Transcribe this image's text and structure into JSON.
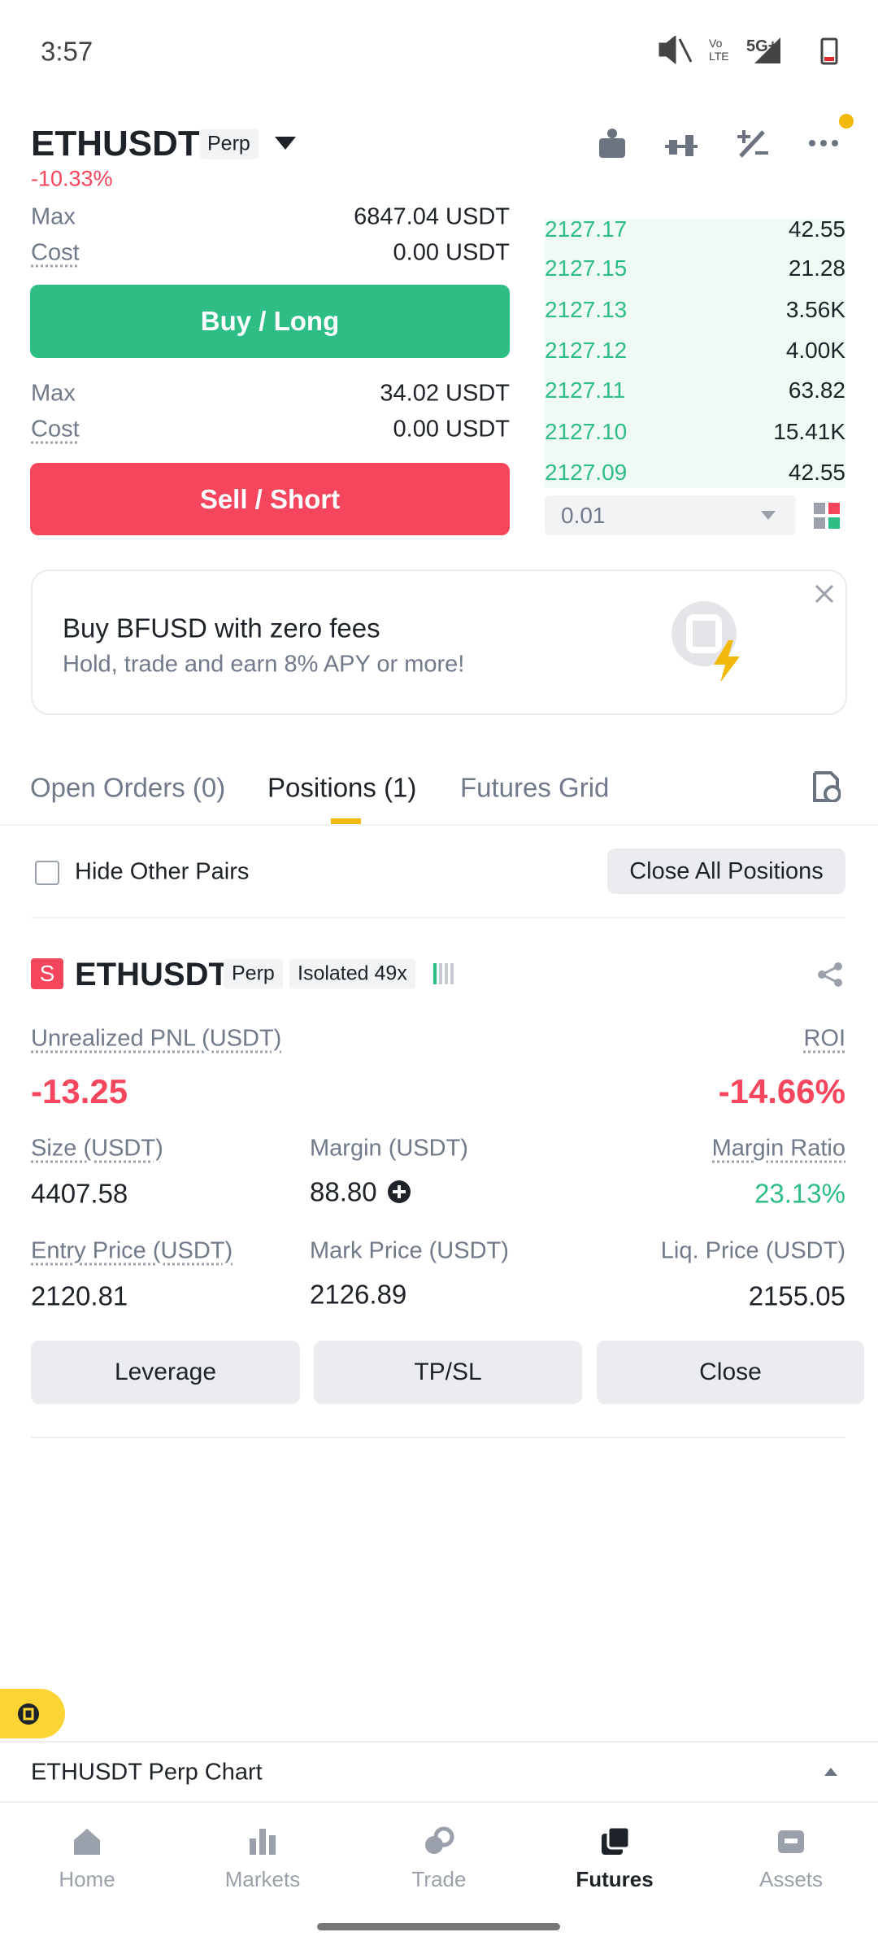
{
  "status_bar": {
    "time": "3:57",
    "network": "5G+"
  },
  "header": {
    "symbol": "ETHUSDT",
    "contract": "Perp",
    "change": "-10.33%"
  },
  "order_form": {
    "top_max_label": "Max",
    "top_max_value": "6847.04 USDT",
    "buy_cost_label": "Cost",
    "buy_cost_value": "0.00 USDT",
    "buy_button": "Buy / Long",
    "sell_max_label": "Max",
    "sell_max_value": "34.02 USDT",
    "sell_cost_label": "Cost",
    "sell_cost_value": "0.00 USDT",
    "sell_button": "Sell / Short"
  },
  "order_book": {
    "rows": [
      [
        "2127.17",
        "42.55"
      ],
      [
        "2127.15",
        "21.28"
      ],
      [
        "2127.13",
        "3.56K"
      ],
      [
        "2127.12",
        "4.00K"
      ],
      [
        "2127.11",
        "63.82"
      ],
      [
        "2127.10",
        "15.41K"
      ],
      [
        "2127.09",
        "42.55"
      ]
    ],
    "depth": "0.01"
  },
  "banner": {
    "title": "Buy BFUSD with zero fees",
    "subtitle": "Hold, trade and earn 8% APY or more!"
  },
  "tabs": [
    "Open Orders (0)",
    "Positions (1)",
    "Futures Grid"
  ],
  "filters": {
    "hide_other_pairs": "Hide Other Pairs",
    "close_all": "Close All Positions"
  },
  "position": {
    "badge": "S",
    "symbol": "ETHUSDT",
    "contract": "Perp",
    "margin_mode": "Isolated 49x",
    "pnl_label": "Unrealized PNL (USDT)",
    "pnl": "-13.25",
    "roi_label": "ROI",
    "roi": "-14.66%",
    "size_label": "Size (USDT)",
    "size": "4407.58",
    "margin_label": "Margin (USDT)",
    "margin": "88.80",
    "margin_ratio_label": "Margin Ratio",
    "margin_ratio": "23.13%",
    "entry_label": "Entry Price (USDT)",
    "entry": "2120.81",
    "mark_label": "Mark Price (USDT)",
    "mark": "2126.89",
    "liq_label": "Liq. Price (USDT)",
    "liq": "2155.05",
    "buttons": [
      "Leverage",
      "TP/SL",
      "Close"
    ]
  },
  "chart_bar": "ETHUSDT Perp Chart",
  "nav": [
    "Home",
    "Markets",
    "Trade",
    "Futures",
    "Assets"
  ]
}
